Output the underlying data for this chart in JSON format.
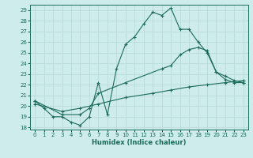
{
  "xlabel": "Humidex (Indice chaleur)",
  "bg_color": "#ceecea",
  "grid_color": "#b8dbd9",
  "line_color": "#1a6b5a",
  "xlim": [
    -0.5,
    23.5
  ],
  "ylim": [
    17.8,
    29.5
  ],
  "yticks": [
    18,
    19,
    20,
    21,
    22,
    23,
    24,
    25,
    26,
    27,
    28,
    29
  ],
  "xticks": [
    0,
    1,
    2,
    3,
    4,
    5,
    6,
    7,
    8,
    9,
    10,
    11,
    12,
    13,
    14,
    15,
    16,
    17,
    18,
    19,
    20,
    21,
    22,
    23
  ],
  "line1_x": [
    0,
    1,
    2,
    3,
    4,
    5,
    6,
    7,
    8,
    9,
    10,
    11,
    12,
    13,
    14,
    15,
    16,
    17,
    18,
    19,
    20,
    21,
    22,
    23
  ],
  "line1_y": [
    20.5,
    19.8,
    19.0,
    19.0,
    18.5,
    18.2,
    19.0,
    22.2,
    19.2,
    23.5,
    25.8,
    26.5,
    27.7,
    28.8,
    28.5,
    29.2,
    27.2,
    27.2,
    26.0,
    25.0,
    23.2,
    22.5,
    22.2,
    22.2
  ],
  "line2_x": [
    0,
    3,
    5,
    6,
    7,
    10,
    14,
    15,
    16,
    17,
    18,
    19,
    20,
    21,
    22,
    23
  ],
  "line2_y": [
    20.5,
    19.2,
    19.2,
    19.8,
    21.2,
    22.2,
    23.5,
    23.8,
    24.8,
    25.3,
    25.5,
    25.2,
    23.2,
    22.8,
    22.4,
    22.2
  ],
  "line3_x": [
    0,
    3,
    5,
    7,
    10,
    13,
    15,
    17,
    19,
    21,
    23
  ],
  "line3_y": [
    20.2,
    19.5,
    19.8,
    20.2,
    20.8,
    21.2,
    21.5,
    21.8,
    22.0,
    22.2,
    22.4
  ]
}
